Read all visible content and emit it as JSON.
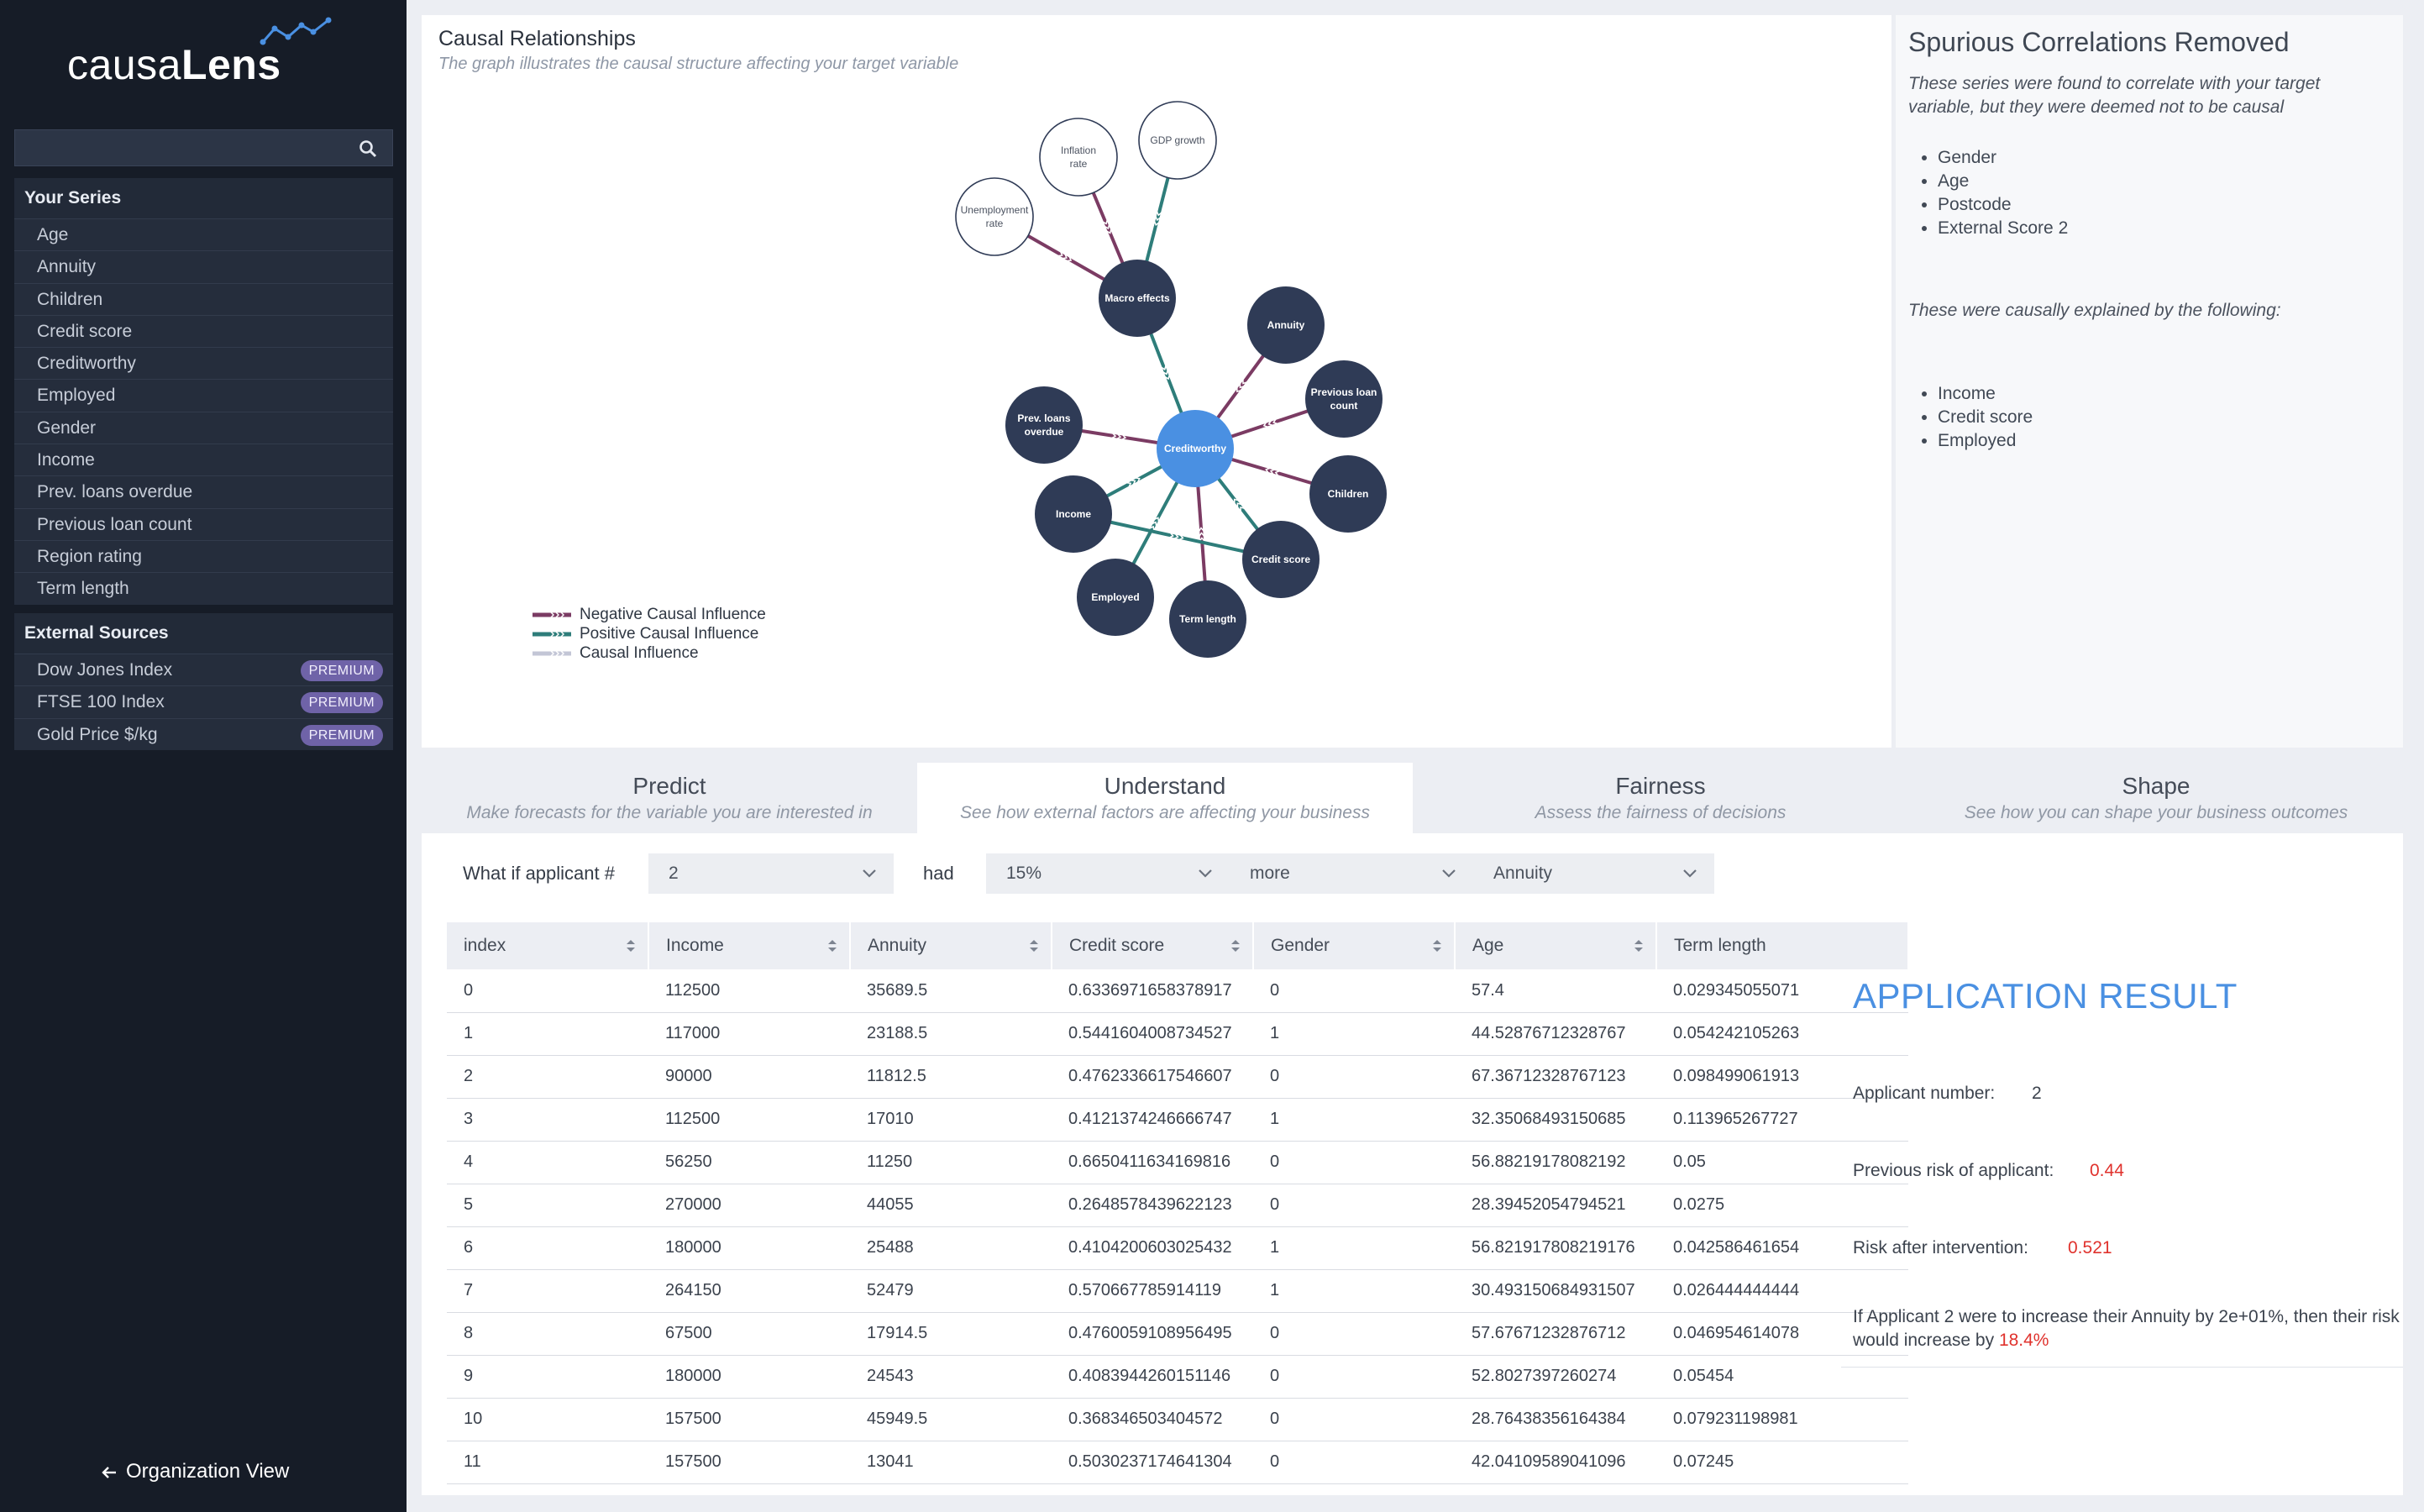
{
  "app": {
    "brand_light": "causa",
    "brand_bold": "Lens",
    "accent_color": "#4a90e2",
    "sidebar_color": "#161c27"
  },
  "sidebar": {
    "search": {
      "placeholder": "",
      "value": "",
      "icon": "search-icon"
    },
    "your_series": {
      "title": "Your Series",
      "items": [
        "Age",
        "Annuity",
        "Children",
        "Credit score",
        "Creditworthy",
        "Employed",
        "Gender",
        "Income",
        "Prev. loans overdue",
        "Previous loan count",
        "Region rating",
        "Term length"
      ]
    },
    "external_sources": {
      "title": "External Sources",
      "items": [
        {
          "label": "Dow Jones Index",
          "badge": "PREMIUM"
        },
        {
          "label": "FTSE 100 Index",
          "badge": "PREMIUM"
        },
        {
          "label": "Gold Price $/kg",
          "badge": "PREMIUM"
        }
      ]
    },
    "org_view": {
      "label": "Organization View",
      "icon": "arrow-left-icon"
    }
  },
  "causal_graph": {
    "title": "Causal Relationships",
    "subtitle": "The graph illustrates the causal structure affecting your target variable",
    "colors": {
      "negative": "#7b3b63",
      "positive": "#2e7d7a",
      "neutral": "#c3c6d6",
      "node_dark": "#2f3b56",
      "node_target": "#4a90e2"
    },
    "nodes": [
      {
        "id": "creditworthy",
        "label": "Creditworthy",
        "kind": "target"
      },
      {
        "id": "macro",
        "label": "Macro effects",
        "kind": "dark"
      },
      {
        "id": "unemployment",
        "label": "Unemployment rate",
        "kind": "external"
      },
      {
        "id": "inflation",
        "label": "Inflation rate",
        "kind": "external"
      },
      {
        "id": "gdp",
        "label": "GDP growth",
        "kind": "external"
      },
      {
        "id": "annuity",
        "label": "Annuity",
        "kind": "dark"
      },
      {
        "id": "prevcount",
        "label": "Previous loan count",
        "kind": "dark"
      },
      {
        "id": "children",
        "label": "Children",
        "kind": "dark"
      },
      {
        "id": "credit",
        "label": "Credit score",
        "kind": "dark"
      },
      {
        "id": "term",
        "label": "Term length",
        "kind": "dark"
      },
      {
        "id": "employed",
        "label": "Employed",
        "kind": "dark"
      },
      {
        "id": "income",
        "label": "Income",
        "kind": "dark"
      },
      {
        "id": "prevoverdue",
        "label": "Prev. loans overdue",
        "kind": "dark"
      }
    ],
    "edges": [
      {
        "from": "unemployment",
        "to": "macro",
        "sign": "negative"
      },
      {
        "from": "inflation",
        "to": "macro",
        "sign": "negative"
      },
      {
        "from": "gdp",
        "to": "macro",
        "sign": "positive"
      },
      {
        "from": "macro",
        "to": "creditworthy",
        "sign": "positive"
      },
      {
        "from": "annuity",
        "to": "creditworthy",
        "sign": "negative"
      },
      {
        "from": "prevcount",
        "to": "creditworthy",
        "sign": "negative"
      },
      {
        "from": "children",
        "to": "creditworthy",
        "sign": "negative"
      },
      {
        "from": "credit",
        "to": "creditworthy",
        "sign": "positive"
      },
      {
        "from": "term",
        "to": "creditworthy",
        "sign": "negative"
      },
      {
        "from": "employed",
        "to": "creditworthy",
        "sign": "positive"
      },
      {
        "from": "income",
        "to": "creditworthy",
        "sign": "positive"
      },
      {
        "from": "prevoverdue",
        "to": "creditworthy",
        "sign": "negative"
      },
      {
        "from": "income",
        "to": "credit",
        "sign": "positive"
      }
    ],
    "legend": [
      {
        "label": "Negative Causal Influence",
        "sign": "negative"
      },
      {
        "label": "Positive Causal Influence",
        "sign": "positive"
      },
      {
        "label": "Causal Influence",
        "sign": "neutral"
      }
    ]
  },
  "spurious": {
    "title": "Spurious Correlations Removed",
    "intro": "These series were found to correlate with your target variable, but they were deemed not to be causal",
    "removed": [
      "Gender",
      "Age",
      "Postcode",
      "External Score 2"
    ],
    "explained_intro": "These were causally explained by the following:",
    "explainers": [
      "Income",
      "Credit score",
      "Employed"
    ]
  },
  "tabs": [
    {
      "label": "Predict",
      "desc": "Make forecasts for the variable you are interested in",
      "active": false
    },
    {
      "label": "Understand",
      "desc": "See how external factors are affecting your business",
      "active": true
    },
    {
      "label": "Fairness",
      "desc": "Assess the fairness of decisions",
      "active": false
    },
    {
      "label": "Shape",
      "desc": "See how you can shape your business outcomes",
      "active": false
    }
  ],
  "what_if": {
    "prefix": "What if applicant #",
    "applicant": "2",
    "had": "had",
    "percent": "15%",
    "direction": "more",
    "variable": "Annuity"
  },
  "table": {
    "columns": [
      "index",
      "Income",
      "Annuity",
      "Credit score",
      "Gender",
      "Age",
      "Term length"
    ],
    "rows": [
      [
        "0",
        "112500",
        "35689.5",
        "0.6336971658378917",
        "0",
        "57.4",
        "0.029345055071"
      ],
      [
        "1",
        "117000",
        "23188.5",
        "0.5441604008734527",
        "1",
        "44.52876712328767",
        "0.054242105263"
      ],
      [
        "2",
        "90000",
        "11812.5",
        "0.4762336617546607",
        "0",
        "67.36712328767123",
        "0.098499061913"
      ],
      [
        "3",
        "112500",
        "17010",
        "0.4121374246666747",
        "1",
        "32.35068493150685",
        "0.113965267727"
      ],
      [
        "4",
        "56250",
        "11250",
        "0.6650411634169816",
        "0",
        "56.88219178082192",
        "0.05"
      ],
      [
        "5",
        "270000",
        "44055",
        "0.2648578439622123",
        "0",
        "28.39452054794521",
        "0.0275"
      ],
      [
        "6",
        "180000",
        "25488",
        "0.4104200603025432",
        "1",
        "56.821917808219176",
        "0.042586461654"
      ],
      [
        "7",
        "264150",
        "52479",
        "0.570667785914119",
        "1",
        "30.493150684931507",
        "0.026444444444"
      ],
      [
        "8",
        "67500",
        "17914.5",
        "0.4760059108956495",
        "0",
        "57.67671232876712",
        "0.046954614078"
      ],
      [
        "9",
        "180000",
        "24543",
        "0.4083944260151146",
        "0",
        "52.8027397260274",
        "0.05454"
      ],
      [
        "10",
        "157500",
        "45949.5",
        "0.368346503404572",
        "0",
        "28.76438356164384",
        "0.079231198981"
      ],
      [
        "11",
        "157500",
        "13041",
        "0.5030237174641304",
        "0",
        "42.04109589041096",
        "0.07245"
      ]
    ]
  },
  "result": {
    "title": "APPLICATION RESULT",
    "applicant_label": "Applicant number:",
    "applicant_value": "2",
    "prev_risk_label": "Previous risk of applicant:",
    "prev_risk_value": "0.44",
    "after_label": "Risk after intervention:",
    "after_value": "0.521",
    "sentence_line1": "If Applicant 2 were to increase their Annuity by 2e+01%, then their risk",
    "sentence_line2_prefix": "would increase by",
    "sentence_increase": "18.4%"
  }
}
